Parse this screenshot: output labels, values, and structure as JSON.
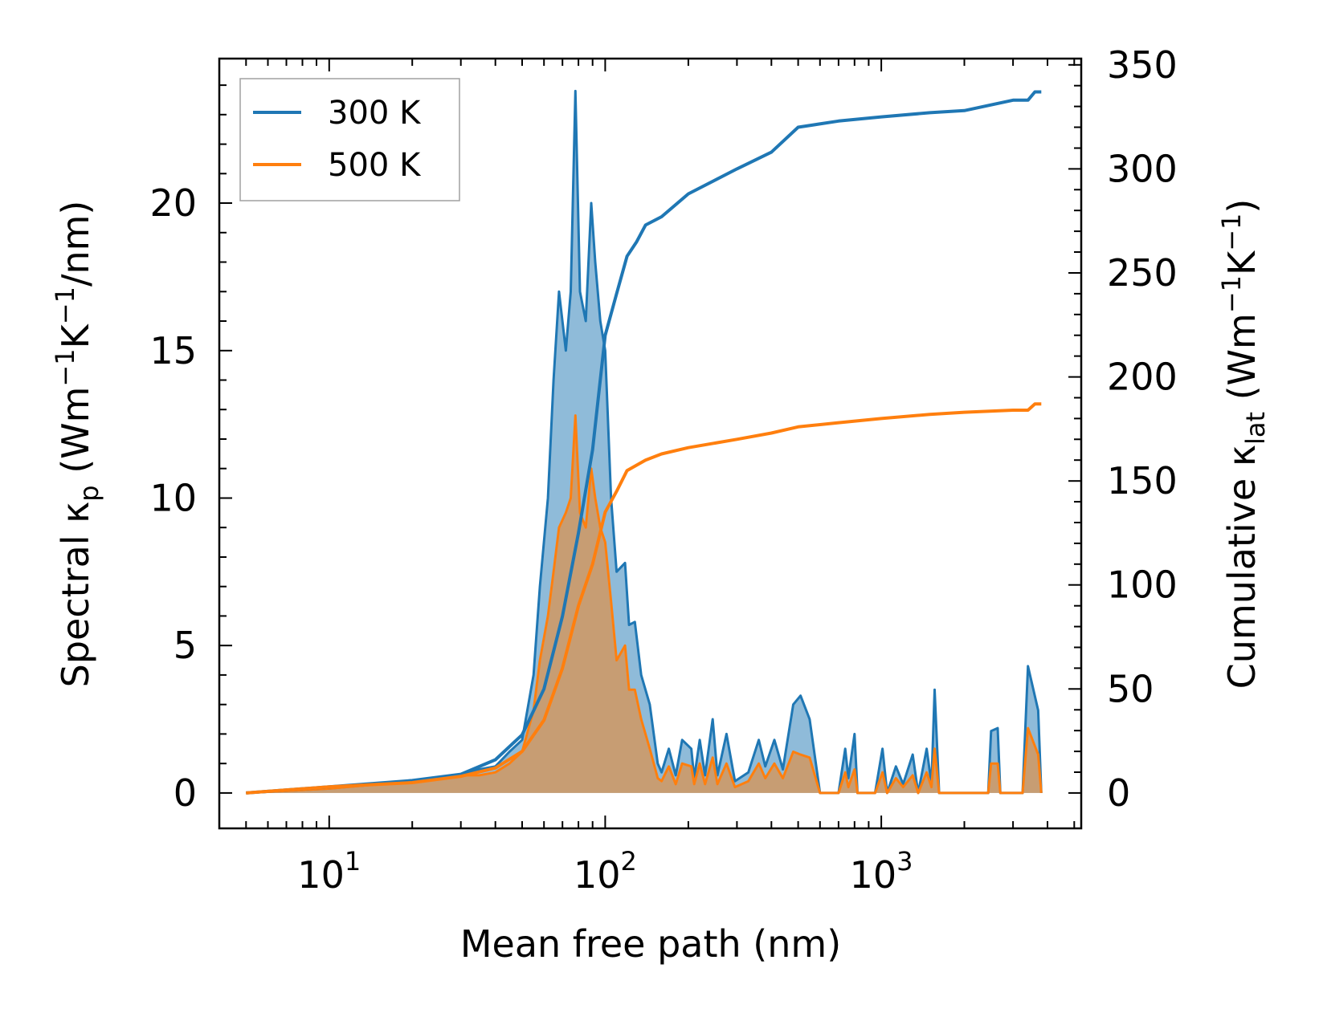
{
  "chart_data": {
    "type": "line",
    "xscale": "log",
    "xlim": [
      4.0,
      5300
    ],
    "ylim_left": [
      -1.2,
      24.9
    ],
    "ylim_right": [
      -17.0,
      353.0
    ],
    "xlabel": "Mean free path (nm)",
    "ylabel_left": {
      "prefix": "Spectral κ",
      "sub": "p",
      "unit_open": " (Wm",
      "sup1": "−1",
      "mid": "K",
      "sup2": "−1",
      "unit_close": "/nm)"
    },
    "ylabel_right": {
      "prefix": "Cumulative κ",
      "sub": "lat",
      "unit_open": " (Wm",
      "sup1": "−1",
      "mid": "K",
      "sup2": "−1",
      "unit_close": ")"
    },
    "x_major_ticks": [
      {
        "base": "10",
        "exp": "1",
        "value": 10
      },
      {
        "base": "10",
        "exp": "2",
        "value": 100
      },
      {
        "base": "10",
        "exp": "3",
        "value": 1000
      }
    ],
    "y_left_ticks": [
      {
        "label": "0",
        "value": 0
      },
      {
        "label": "5",
        "value": 5
      },
      {
        "label": "10",
        "value": 10
      },
      {
        "label": "15",
        "value": 15
      },
      {
        "label": "20",
        "value": 20
      }
    ],
    "y_right_ticks": [
      {
        "label": "0",
        "value": 0
      },
      {
        "label": "50",
        "value": 50
      },
      {
        "label": "100",
        "value": 100
      },
      {
        "label": "150",
        "value": 150
      },
      {
        "label": "200",
        "value": 200
      },
      {
        "label": "250",
        "value": 250
      },
      {
        "label": "300",
        "value": 300
      },
      {
        "label": "350",
        "value": 350
      }
    ],
    "legend": {
      "position": "top-left",
      "entries": [
        "300 K",
        "500 K"
      ]
    },
    "colors": {
      "300 K": "#1f77b4",
      "500 K": "#ff7f0e"
    },
    "spectral": {
      "300 K": [
        [
          5,
          0
        ],
        [
          8,
          0.1
        ],
        [
          10,
          0.15
        ],
        [
          20,
          0.4
        ],
        [
          30,
          0.6
        ],
        [
          35,
          0.8
        ],
        [
          40,
          0.9
        ],
        [
          45,
          1.4
        ],
        [
          50,
          1.8
        ],
        [
          55,
          4.0
        ],
        [
          58,
          7.0
        ],
        [
          62,
          10.0
        ],
        [
          65,
          14.0
        ],
        [
          68,
          17.0
        ],
        [
          72,
          15.0
        ],
        [
          75,
          17.0
        ],
        [
          78,
          23.8
        ],
        [
          81,
          17.0
        ],
        [
          85,
          16.0
        ],
        [
          89,
          20.0
        ],
        [
          92,
          18.0
        ],
        [
          96,
          16.0
        ],
        [
          100,
          15.0
        ],
        [
          105,
          10.0
        ],
        [
          110,
          7.5
        ],
        [
          118,
          7.8
        ],
        [
          122,
          5.7
        ],
        [
          128,
          5.8
        ],
        [
          135,
          4.0
        ],
        [
          145,
          3.0
        ],
        [
          155,
          1.0
        ],
        [
          160,
          0.7
        ],
        [
          170,
          1.5
        ],
        [
          180,
          0.6
        ],
        [
          190,
          1.8
        ],
        [
          205,
          1.5
        ],
        [
          210,
          0.5
        ],
        [
          220,
          1.8
        ],
        [
          230,
          0.6
        ],
        [
          245,
          2.5
        ],
        [
          255,
          0.6
        ],
        [
          275,
          2.0
        ],
        [
          295,
          0.4
        ],
        [
          330,
          0.7
        ],
        [
          360,
          1.8
        ],
        [
          380,
          0.9
        ],
        [
          410,
          1.8
        ],
        [
          440,
          0.8
        ],
        [
          480,
          3.0
        ],
        [
          510,
          3.3
        ],
        [
          550,
          2.5
        ],
        [
          600,
          0.0
        ],
        [
          700,
          0.0
        ],
        [
          740,
          1.5
        ],
        [
          760,
          0.5
        ],
        [
          800,
          2.0
        ],
        [
          820,
          0.0
        ],
        [
          950,
          0.0
        ],
        [
          1010,
          1.5
        ],
        [
          1050,
          0.0
        ],
        [
          1130,
          0.9
        ],
        [
          1200,
          0.3
        ],
        [
          1300,
          1.3
        ],
        [
          1360,
          0.0
        ],
        [
          1460,
          1.5
        ],
        [
          1520,
          0.3
        ],
        [
          1560,
          3.5
        ],
        [
          1620,
          0.0
        ],
        [
          2440,
          0.0
        ],
        [
          2500,
          2.1
        ],
        [
          2640,
          2.2
        ],
        [
          2700,
          0.0
        ],
        [
          3250,
          0.0
        ],
        [
          3400,
          4.3
        ],
        [
          3700,
          2.8
        ],
        [
          3800,
          0.0
        ]
      ],
      "500 K": [
        [
          5,
          0
        ],
        [
          8,
          0.1
        ],
        [
          10,
          0.15
        ],
        [
          20,
          0.4
        ],
        [
          30,
          0.6
        ],
        [
          35,
          0.6
        ],
        [
          40,
          0.7
        ],
        [
          45,
          1.0
        ],
        [
          50,
          1.4
        ],
        [
          55,
          2.8
        ],
        [
          58,
          4.5
        ],
        [
          62,
          6.0
        ],
        [
          65,
          7.5
        ],
        [
          68,
          9.0
        ],
        [
          72,
          9.5
        ],
        [
          75,
          10.0
        ],
        [
          78,
          12.8
        ],
        [
          81,
          9.5
        ],
        [
          85,
          9.0
        ],
        [
          89,
          11.0
        ],
        [
          92,
          10.0
        ],
        [
          96,
          9.0
        ],
        [
          100,
          8.5
        ],
        [
          105,
          6.5
        ],
        [
          110,
          4.5
        ],
        [
          118,
          5.0
        ],
        [
          122,
          3.5
        ],
        [
          128,
          3.5
        ],
        [
          135,
          2.5
        ],
        [
          145,
          1.5
        ],
        [
          155,
          0.5
        ],
        [
          160,
          0.4
        ],
        [
          170,
          0.9
        ],
        [
          180,
          0.3
        ],
        [
          190,
          1.0
        ],
        [
          205,
          0.9
        ],
        [
          210,
          0.3
        ],
        [
          220,
          1.0
        ],
        [
          230,
          0.3
        ],
        [
          245,
          1.2
        ],
        [
          255,
          0.3
        ],
        [
          275,
          1.0
        ],
        [
          295,
          0.2
        ],
        [
          330,
          0.4
        ],
        [
          360,
          1.0
        ],
        [
          380,
          0.5
        ],
        [
          410,
          1.0
        ],
        [
          440,
          0.5
        ],
        [
          480,
          1.4
        ],
        [
          510,
          1.3
        ],
        [
          550,
          1.2
        ],
        [
          600,
          0.0
        ],
        [
          700,
          0.0
        ],
        [
          740,
          0.7
        ],
        [
          760,
          0.2
        ],
        [
          800,
          0.8
        ],
        [
          820,
          0.0
        ],
        [
          950,
          0.0
        ],
        [
          1010,
          0.7
        ],
        [
          1050,
          0.0
        ],
        [
          1130,
          0.5
        ],
        [
          1200,
          0.2
        ],
        [
          1300,
          0.6
        ],
        [
          1360,
          0.0
        ],
        [
          1460,
          0.7
        ],
        [
          1520,
          0.2
        ],
        [
          1560,
          1.5
        ],
        [
          1620,
          0.0
        ],
        [
          2440,
          0.0
        ],
        [
          2500,
          1.0
        ],
        [
          2640,
          1.0
        ],
        [
          2700,
          0.0
        ],
        [
          3250,
          0.0
        ],
        [
          3400,
          2.2
        ],
        [
          3700,
          1.3
        ],
        [
          3800,
          0.0
        ]
      ]
    },
    "cumulative": {
      "300 K": [
        [
          5,
          0
        ],
        [
          10,
          3
        ],
        [
          20,
          6
        ],
        [
          30,
          9
        ],
        [
          40,
          16
        ],
        [
          50,
          28
        ],
        [
          60,
          50
        ],
        [
          70,
          85
        ],
        [
          80,
          125
        ],
        [
          90,
          165
        ],
        [
          100,
          220
        ],
        [
          110,
          240
        ],
        [
          120,
          258
        ],
        [
          130,
          265
        ],
        [
          140,
          273
        ],
        [
          160,
          277
        ],
        [
          200,
          288
        ],
        [
          300,
          300
        ],
        [
          400,
          308
        ],
        [
          500,
          320
        ],
        [
          700,
          323
        ],
        [
          1000,
          325
        ],
        [
          1500,
          327
        ],
        [
          2000,
          328
        ],
        [
          3000,
          333
        ],
        [
          3400,
          333
        ],
        [
          3600,
          337
        ],
        [
          3800,
          337
        ]
      ],
      "500 K": [
        [
          5,
          0
        ],
        [
          10,
          3
        ],
        [
          20,
          5
        ],
        [
          30,
          8
        ],
        [
          40,
          12
        ],
        [
          50,
          20
        ],
        [
          60,
          35
        ],
        [
          70,
          60
        ],
        [
          80,
          90
        ],
        [
          90,
          110
        ],
        [
          100,
          135
        ],
        [
          110,
          145
        ],
        [
          120,
          155
        ],
        [
          140,
          160
        ],
        [
          160,
          163
        ],
        [
          200,
          166
        ],
        [
          300,
          170
        ],
        [
          400,
          173
        ],
        [
          500,
          176
        ],
        [
          700,
          178
        ],
        [
          1000,
          180
        ],
        [
          1500,
          182
        ],
        [
          2000,
          183
        ],
        [
          3000,
          184
        ],
        [
          3400,
          184
        ],
        [
          3600,
          187
        ],
        [
          3800,
          187
        ]
      ]
    }
  }
}
